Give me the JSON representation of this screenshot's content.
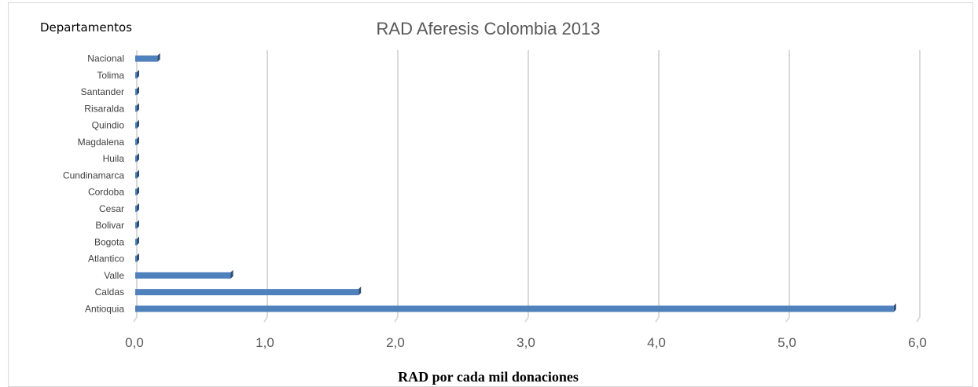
{
  "chart_data": {
    "type": "bar",
    "orientation": "horizontal",
    "title": "RAD Aferesis Colombia 2013",
    "side_label": "Departamentos",
    "xlabel": "RAD por cada mil donaciones",
    "ylabel": "",
    "categories": [
      "Antioquia",
      "Caldas",
      "Valle",
      "Atlantico",
      "Bogota",
      "Bolivar",
      "Cesar",
      "Cordoba",
      "Cundinamarca",
      "Huila",
      "Magdalena",
      "Quindio",
      "Risaralda",
      "Santander",
      "Tolima",
      "Nacional"
    ],
    "values": [
      5.8,
      1.7,
      0.72,
      0.0,
      0.0,
      0.0,
      0.0,
      0.0,
      0.0,
      0.0,
      0.0,
      0.0,
      0.0,
      0.0,
      0.0,
      0.16
    ],
    "xlim": [
      0,
      6
    ],
    "xticks": [
      "0,0",
      "1,0",
      "2,0",
      "3,0",
      "4,0",
      "5,0",
      "6,0"
    ],
    "grid": true,
    "bar_color": "#4f81bd",
    "bar_side_color": "#2c4d75"
  }
}
